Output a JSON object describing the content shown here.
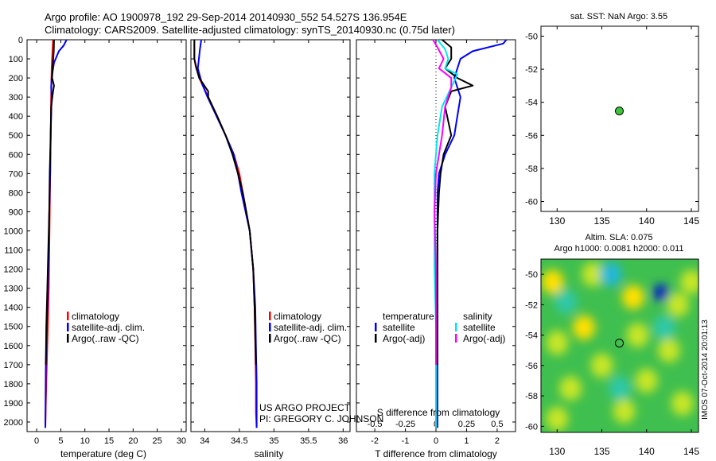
{
  "header": {
    "line1": "Argo profile: AO 1900978_192 29-Sep-2014 20140930_552 54.527S 136.954E",
    "line2": "Climatology: CARS2009. Satellite-adjusted climatology: synTS_20140930.nc (0.75d later)"
  },
  "credit": {
    "line1": "US ARGO PROJECT",
    "line2": "PI: GREGORY C. JOHNSON"
  },
  "vertical_label": "IMOS 07-Oct-2014 20:01:13",
  "legend": {
    "climatology": "climatology",
    "satellite_clim": "satellite-adj. clim.",
    "argo": "Argo(..raw -QC)",
    "temperature": "temperature",
    "salinity": "salinity",
    "satellite": "satellite",
    "argo_adj": "Argo(-adj)"
  },
  "colors": {
    "climatology": "#ff0000",
    "satellite": "#0000ff",
    "argo": "#000000",
    "salinity_satellite": "#00e5ee",
    "salinity_argo": "#ff00ff",
    "marker": "#3cc43c"
  },
  "sst_panel": {
    "title": "sat. SST: NaN Argo: 3.55"
  },
  "sla_panel": {
    "title1": "Altim. SLA: 0.075",
    "title2": "Argo h1000: 0.0081 h2000: 0.011"
  },
  "chart_data": [
    {
      "type": "line",
      "xlabel": "temperature (deg C)",
      "ylabel": "",
      "xlim": [
        -2,
        31
      ],
      "ylim": [
        2050,
        0
      ],
      "xticks": [
        0,
        5,
        10,
        15,
        20,
        25,
        30
      ],
      "yticks": [
        0,
        100,
        200,
        300,
        400,
        500,
        600,
        700,
        800,
        900,
        1000,
        1100,
        1200,
        1300,
        1400,
        1500,
        1600,
        1700,
        1800,
        1900,
        2000
      ],
      "series": [
        {
          "name": "climatology",
          "color": "#ff0000",
          "x": [
            3.4,
            3.3,
            3.1,
            3.0,
            2.9,
            2.8,
            2.7,
            2.6,
            2.5,
            2.3,
            2.1,
            1.9,
            1.8
          ],
          "y": [
            0,
            50,
            150,
            300,
            500,
            700,
            900,
            1100,
            1300,
            1500,
            1700,
            1900,
            2030
          ]
        },
        {
          "name": "satellite-adj. clim.",
          "color": "#0000ff",
          "x": [
            6.2,
            5.6,
            4.6,
            3.6,
            3.1,
            3.0,
            3.1,
            2.9,
            2.8,
            2.6,
            2.5,
            2.3,
            2.1,
            1.9,
            1.8
          ],
          "y": [
            0,
            30,
            60,
            120,
            200,
            250,
            300,
            500,
            700,
            900,
            1100,
            1300,
            1500,
            1700,
            2030
          ]
        },
        {
          "name": "Argo(..raw -QC)",
          "color": "#000000",
          "x": [
            3.6,
            3.55,
            3.3,
            3.2,
            3.6,
            3.4,
            3.0,
            2.9,
            2.7,
            2.6,
            2.4,
            2.2,
            2.0,
            1.9
          ],
          "y": [
            0,
            60,
            150,
            200,
            240,
            270,
            350,
            500,
            700,
            900,
            1100,
            1300,
            1500,
            1700
          ]
        }
      ]
    },
    {
      "type": "line",
      "xlabel": "salinity",
      "ylabel": "",
      "xlim": [
        33.8,
        36.1
      ],
      "ylim": [
        2050,
        0
      ],
      "xticks": [
        34,
        34.5,
        35,
        35.5,
        36
      ],
      "series": [
        {
          "name": "climatology",
          "color": "#ff0000",
          "x": [
            33.85,
            33.85,
            33.87,
            33.92,
            34.05,
            34.18,
            34.3,
            34.42,
            34.5,
            34.55,
            34.6,
            34.65,
            34.7,
            34.72,
            34.73,
            34.74,
            34.74,
            34.75
          ],
          "y": [
            0,
            100,
            140,
            200,
            300,
            400,
            500,
            600,
            700,
            800,
            900,
            1000,
            1200,
            1400,
            1600,
            1800,
            1950,
            2030
          ]
        },
        {
          "name": "satellite-adj. clim.",
          "color": "#0000ff",
          "x": [
            33.95,
            33.93,
            33.9,
            33.96,
            34.04,
            34.17,
            34.3,
            34.42,
            34.48,
            34.53,
            34.59,
            34.65,
            34.7,
            34.73,
            34.74,
            34.75,
            34.75
          ],
          "y": [
            0,
            50,
            150,
            230,
            300,
            400,
            500,
            600,
            700,
            800,
            900,
            1000,
            1200,
            1400,
            1600,
            1800,
            2030
          ]
        },
        {
          "name": "Argo(..raw -QC)",
          "color": "#000000",
          "x": [
            33.85,
            33.85,
            33.88,
            33.92,
            34.05,
            34.05,
            34.18,
            34.3,
            34.4,
            34.48,
            34.55,
            34.6,
            34.65,
            34.7,
            34.72,
            34.74
          ],
          "y": [
            0,
            100,
            150,
            200,
            270,
            300,
            400,
            500,
            600,
            700,
            800,
            900,
            1000,
            1200,
            1400,
            1700
          ]
        }
      ]
    },
    {
      "type": "line",
      "xlabel": "T difference from climatology",
      "ylabel": "",
      "title": "S difference from climatology",
      "xlim": [
        -2.6,
        2.6
      ],
      "ylim": [
        2050,
        0
      ],
      "xticks": [
        -2,
        -1,
        0,
        1,
        2
      ],
      "top_ticks": [
        -0.5,
        -0.25,
        0,
        0.25,
        0.5
      ],
      "series": [
        {
          "name": "temperature satellite",
          "color": "#0000ff",
          "x": [
            2.3,
            2.2,
            1.2,
            0.8,
            0.6,
            0.7,
            0.8,
            0.7,
            0.6,
            0.3,
            0.1,
            0.05,
            0.05,
            0.05,
            0.05,
            0.05
          ],
          "y": [
            0,
            20,
            60,
            100,
            200,
            250,
            300,
            400,
            500,
            600,
            700,
            800,
            1000,
            1300,
            1700,
            2030
          ]
        },
        {
          "name": "temperature Argo(-adj)",
          "color": "#000000",
          "x": [
            0.2,
            0.5,
            0.5,
            0.3,
            0.7,
            1.2,
            0.5,
            0.3,
            0.5,
            0.25,
            0.15,
            0.1,
            0.05,
            0.05,
            0.05
          ],
          "y": [
            0,
            40,
            100,
            150,
            200,
            240,
            270,
            350,
            500,
            600,
            700,
            800,
            1000,
            1300,
            1700
          ]
        },
        {
          "name": "salinity satellite",
          "color": "#00e5ee",
          "x": [
            0.05,
            0.3,
            0.4,
            0.3,
            0.7,
            0.5,
            0.2,
            0.05,
            0.0,
            -0.05,
            -0.05,
            -0.05,
            0.0,
            0.0,
            0.0
          ],
          "y": [
            0,
            50,
            100,
            150,
            180,
            250,
            350,
            500,
            600,
            700,
            900,
            1200,
            1500,
            1800,
            2030
          ]
        },
        {
          "name": "salinity Argo(-adj)",
          "color": "#ff00ff",
          "x": [
            -0.1,
            0.05,
            0.25,
            0.1,
            0.5,
            0.5,
            0.3,
            0.2,
            0.1,
            0.0,
            -0.05,
            0.0,
            0.0
          ],
          "y": [
            0,
            40,
            100,
            150,
            200,
            250,
            350,
            500,
            600,
            700,
            900,
            1200,
            1700
          ]
        }
      ]
    },
    {
      "type": "scatter",
      "title": "sat. SST: NaN Argo: 3.55",
      "xlim": [
        128.2,
        145.8
      ],
      "ylim": [
        -60.6,
        -49.4
      ],
      "xticks": [
        130,
        135,
        140,
        145
      ],
      "yticks": [
        -50,
        -52,
        -54,
        -56,
        -58,
        -60
      ],
      "points": [
        {
          "x": 136.954,
          "y": -54.527
        }
      ]
    },
    {
      "type": "heatmap",
      "title": "Altim. SLA: 0.075",
      "subtitle": "Argo h1000: 0.0081 h2000: 0.011",
      "xlim": [
        128.2,
        145.8
      ],
      "ylim": [
        -60.4,
        -49
      ],
      "xticks": [
        130,
        135,
        140,
        145
      ],
      "yticks": [
        -50,
        -52,
        -54,
        -56,
        -58,
        -60
      ],
      "points": [
        {
          "x": 136.954,
          "y": -54.527
        }
      ],
      "blobs": [
        {
          "x": 129.5,
          "y": -50.5,
          "v": 0.6
        },
        {
          "x": 134.0,
          "y": -50.0,
          "v": 0.5
        },
        {
          "x": 138.5,
          "y": -51.5,
          "v": 0.6
        },
        {
          "x": 141.6,
          "y": -51.2,
          "v": -1.0
        },
        {
          "x": 136.0,
          "y": -50.0,
          "v": -0.6
        },
        {
          "x": 131.0,
          "y": -51.8,
          "v": -0.4
        },
        {
          "x": 143.5,
          "y": -52.0,
          "v": 0.5
        },
        {
          "x": 133.0,
          "y": -53.5,
          "v": 0.55
        },
        {
          "x": 130.0,
          "y": -54.5,
          "v": 0.45
        },
        {
          "x": 139.0,
          "y": -54.0,
          "v": 0.5
        },
        {
          "x": 142.5,
          "y": -55.0,
          "v": 0.5
        },
        {
          "x": 135.0,
          "y": -56.0,
          "v": 0.4
        },
        {
          "x": 140.0,
          "y": -57.0,
          "v": 0.45
        },
        {
          "x": 131.5,
          "y": -57.5,
          "v": 0.4
        },
        {
          "x": 144.0,
          "y": -58.5,
          "v": 0.4
        },
        {
          "x": 137.5,
          "y": -59.0,
          "v": 0.35
        },
        {
          "x": 130.0,
          "y": -59.5,
          "v": 0.5
        },
        {
          "x": 145.0,
          "y": -50.5,
          "v": 0.5
        },
        {
          "x": 137.0,
          "y": -57.5,
          "v": -0.3
        },
        {
          "x": 142.0,
          "y": -53.5,
          "v": -0.3
        }
      ]
    }
  ]
}
